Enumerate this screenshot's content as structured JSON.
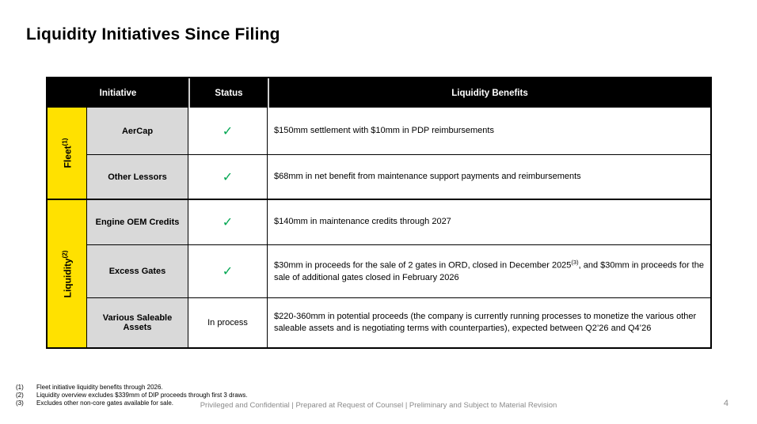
{
  "slide": {
    "title": "Liquidity Initiatives Since Filing",
    "footer": "Privileged and Confidential | Prepared at Request of Counsel | Preliminary and Subject to Material Revision",
    "page_number": "4"
  },
  "colors": {
    "section_yellow": "#FFE100",
    "initiative_gray": "#D9D9D9",
    "header_black": "#000000",
    "check_green": "#00A651",
    "footer_gray": "#8a8a8a"
  },
  "table": {
    "header": {
      "initiative": "Initiative",
      "status": "Status",
      "benefits": "Liquidity Benefits"
    },
    "sections": [
      {
        "label": "Fleet",
        "sup": "(1)",
        "rows": [
          {
            "initiative": "AerCap",
            "status": "✓",
            "benefit": "$150mm settlement with $10mm in PDP reimbursements"
          },
          {
            "initiative": "Other Lessors",
            "status": "✓",
            "benefit": "$68mm in net benefit from maintenance support payments and reimbursements"
          }
        ]
      },
      {
        "label": "Liquidity",
        "sup": "(2)",
        "rows": [
          {
            "initiative": "Engine OEM Credits",
            "status": "✓",
            "benefit": "$140mm in maintenance credits through 2027"
          },
          {
            "initiative": "Excess Gates",
            "status": "✓",
            "benefit_part1": "$30mm in proceeds for the sale of 2 gates in ORD, closed in December 2025",
            "benefit_sup": "(3)",
            "benefit_part2": ", and $30mm in proceeds for the sale of additional gates closed in February 2026"
          },
          {
            "initiative": "Various Saleable Assets",
            "status": "In process",
            "benefit": "$220-360mm in potential proceeds (the company is currently running processes to monetize the various other saleable assets and is negotiating terms with counterparties), expected between Q2’26 and Q4’26"
          }
        ]
      }
    ]
  },
  "footnotes": [
    {
      "num": "(1)",
      "text": "Fleet initiative liquidity benefits through 2026."
    },
    {
      "num": "(2)",
      "text": "Liquidity overview excludes $339mm of DIP proceeds through first 3 draws."
    },
    {
      "num": "(3)",
      "text": "Excludes other non-core gates available for sale."
    }
  ]
}
